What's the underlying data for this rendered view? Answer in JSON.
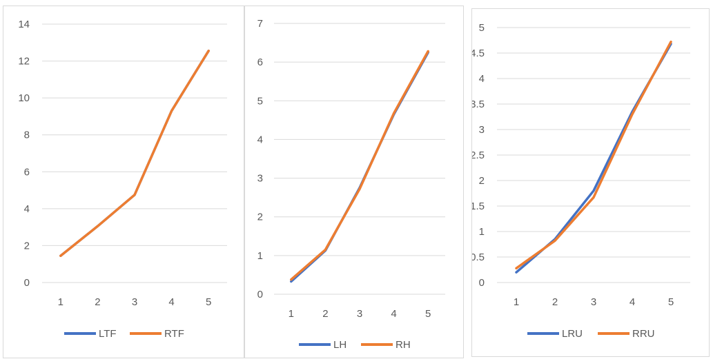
{
  "colors": {
    "series_a": "#4472C4",
    "series_b": "#ED7D31",
    "grid": "#d9d9d9",
    "text": "#595959"
  },
  "chart_data": [
    {
      "type": "line",
      "categories": [
        "1",
        "2",
        "3",
        "4",
        "5"
      ],
      "ylim": [
        0,
        14
      ],
      "yticks": [
        "0",
        "2",
        "4",
        "6",
        "8",
        "10",
        "12",
        "14"
      ],
      "grid": true,
      "legend_position": "bottom",
      "series": [
        {
          "name": "LTF",
          "values": [
            1.45,
            3.05,
            4.75,
            9.3,
            12.55
          ]
        },
        {
          "name": "RTF",
          "values": [
            1.45,
            3.05,
            4.75,
            9.3,
            12.55
          ]
        }
      ]
    },
    {
      "type": "line",
      "categories": [
        "1",
        "2",
        "3",
        "4",
        "5"
      ],
      "ylim": [
        0,
        7
      ],
      "yticks": [
        "0",
        "1",
        "2",
        "3",
        "4",
        "5",
        "6",
        "7"
      ],
      "grid": true,
      "legend_position": "bottom",
      "series": [
        {
          "name": "LH",
          "values": [
            0.33,
            1.13,
            2.75,
            4.65,
            6.25
          ]
        },
        {
          "name": "RH",
          "values": [
            0.38,
            1.15,
            2.72,
            4.68,
            6.28
          ]
        }
      ]
    },
    {
      "type": "line",
      "categories": [
        "1",
        "2",
        "3",
        "4",
        "5"
      ],
      "ylim": [
        0,
        5
      ],
      "yticks": [
        "0",
        "0.5",
        "1",
        "1.5",
        "2",
        "2.5",
        "3",
        "3.5",
        "4",
        "4.5",
        "5"
      ],
      "grid": true,
      "legend_position": "bottom",
      "series": [
        {
          "name": "LRU",
          "values": [
            0.2,
            0.85,
            1.8,
            3.35,
            4.68
          ]
        },
        {
          "name": "RRU",
          "values": [
            0.28,
            0.82,
            1.67,
            3.3,
            4.72
          ]
        }
      ]
    }
  ]
}
